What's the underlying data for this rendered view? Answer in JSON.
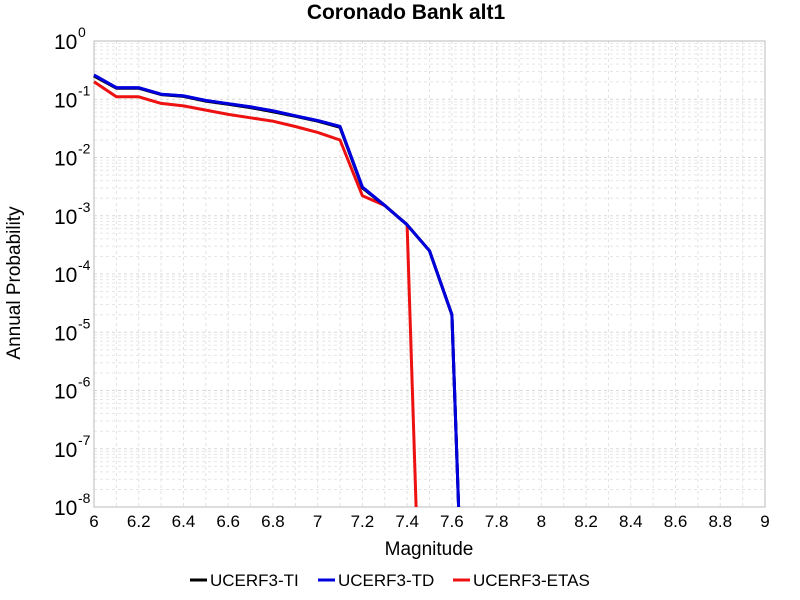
{
  "chart_data": {
    "type": "line",
    "title": "Coronado Bank alt1",
    "xlabel": "Magnitude",
    "ylabel": "Annual Probability",
    "yscale": "log",
    "xlim": [
      6,
      9
    ],
    "ylim": [
      1e-08,
      1
    ],
    "grid": true,
    "legend_position": "bottom",
    "xticks": [
      "6",
      "6.2",
      "6.4",
      "6.6",
      "6.8",
      "7",
      "7.2",
      "7.4",
      "7.6",
      "7.8",
      "8",
      "8.2",
      "8.4",
      "8.6",
      "8.8",
      "9"
    ],
    "yticks": [
      {
        "base": "10",
        "exp": "0"
      },
      {
        "base": "10",
        "exp": "-1"
      },
      {
        "base": "10",
        "exp": "-2"
      },
      {
        "base": "10",
        "exp": "-3"
      },
      {
        "base": "10",
        "exp": "-4"
      },
      {
        "base": "10",
        "exp": "-5"
      },
      {
        "base": "10",
        "exp": "-6"
      },
      {
        "base": "10",
        "exp": "-7"
      },
      {
        "base": "10",
        "exp": "-8"
      }
    ],
    "series": [
      {
        "name": "UCERF3-TI",
        "color": "#000000",
        "x": [
          6.0,
          6.1,
          6.2,
          6.3,
          6.4,
          6.5,
          6.6,
          6.7,
          6.8,
          6.9,
          7.0,
          7.1,
          7.2,
          7.3,
          7.4,
          7.5,
          7.6,
          7.63
        ],
        "y": [
          0.25,
          0.155,
          0.155,
          0.12,
          0.112,
          0.093,
          0.082,
          0.072,
          0.061,
          0.051,
          0.042,
          0.033,
          0.003,
          0.0015,
          0.0007,
          0.00025,
          2e-05,
          1e-08
        ]
      },
      {
        "name": "UCERF3-TD",
        "color": "#0000dd",
        "x": [
          6.0,
          6.1,
          6.2,
          6.3,
          6.4,
          6.5,
          6.6,
          6.7,
          6.8,
          6.9,
          7.0,
          7.1,
          7.2,
          7.3,
          7.4,
          7.5,
          7.6,
          7.63
        ],
        "y": [
          0.26,
          0.158,
          0.158,
          0.122,
          0.114,
          0.095,
          0.084,
          0.074,
          0.063,
          0.052,
          0.043,
          0.034,
          0.0031,
          0.0015,
          0.0007,
          0.00025,
          2e-05,
          1e-08
        ]
      },
      {
        "name": "UCERF3-ETAS",
        "color": "#ee1111",
        "x": [
          6.0,
          6.1,
          6.2,
          6.3,
          6.4,
          6.5,
          6.6,
          6.7,
          6.8,
          6.9,
          7.0,
          7.1,
          7.2,
          7.3,
          7.4,
          7.44
        ],
        "y": [
          0.2,
          0.11,
          0.11,
          0.085,
          0.077,
          0.065,
          0.055,
          0.048,
          0.042,
          0.034,
          0.027,
          0.02,
          0.0022,
          0.0015,
          0.0007,
          1e-08
        ]
      }
    ]
  }
}
